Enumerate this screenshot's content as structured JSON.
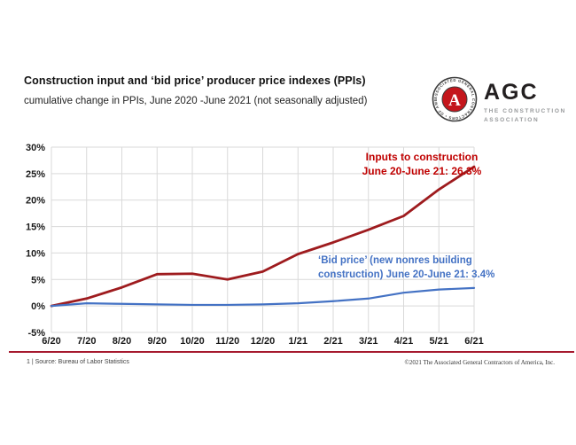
{
  "slide": {
    "title": "Construction input and ‘bid price’ producer price indexes (PPIs)",
    "subtitle": "cumulative change in PPIs, June 2020 -June 2021 (not seasonally adjusted)"
  },
  "logo": {
    "org_abbr": "AGC",
    "tagline_line1": "THE CONSTRUCTION",
    "tagline_line2": "ASSOCIATION",
    "seal_letter": "A",
    "seal_ring_text": "ASSOCIATED GENERAL CONTRACTORS • OF AMERICA •",
    "seal_red": "#c4161c",
    "seal_outline": "#3c3c3c"
  },
  "chart_data": {
    "type": "line",
    "title": "Construction input and ‘bid price’ producer price indexes (PPIs)",
    "subtitle": "cumulative change in PPIs, June 2020 -June 2021 (not seasonally adjusted)",
    "categories": [
      "6/20",
      "7/20",
      "8/20",
      "9/20",
      "10/20",
      "11/20",
      "12/20",
      "1/21",
      "2/21",
      "3/21",
      "4/21",
      "5/21",
      "6/21"
    ],
    "series": [
      {
        "name": "Inputs to construction",
        "color": "#9e1b1e",
        "line_width": 2.8,
        "values": [
          0,
          1.4,
          3.5,
          6.0,
          6.1,
          5.0,
          6.5,
          9.8,
          12.0,
          14.4,
          17.0,
          22.0,
          26.3
        ]
      },
      {
        "name": "‘Bid price’ (new nonres building construction)",
        "color": "#4472c4",
        "line_width": 2.2,
        "values": [
          0,
          0.5,
          0.4,
          0.3,
          0.2,
          0.2,
          0.3,
          0.5,
          0.9,
          1.4,
          2.5,
          3.1,
          3.4
        ]
      }
    ],
    "ylim": [
      -5,
      30
    ],
    "yticks": [
      30,
      25,
      20,
      15,
      10,
      5,
      0,
      -5
    ],
    "ytick_suffix": "%",
    "xlabel": "",
    "ylabel": "",
    "grid": true,
    "legend_position": "none",
    "annotations": [
      {
        "lines": [
          "Inputs to construction",
          "June 20-June 21: 26.3%"
        ],
        "color": "#c00000",
        "align": "center"
      },
      {
        "lines": [
          "‘Bid price’ (new nonres building",
          "construction) June 20-June 21: 3.4%"
        ],
        "color": "#4472c4",
        "align": "left"
      }
    ],
    "grid_color": "#d9d9d9",
    "tick_color": "#1a1a1a"
  },
  "footer": {
    "left": "1 | Source: Bureau of Labor Statistics",
    "right": "©2021 The Associated General Contractors of America, Inc.",
    "rule_color": "#a6192e"
  }
}
